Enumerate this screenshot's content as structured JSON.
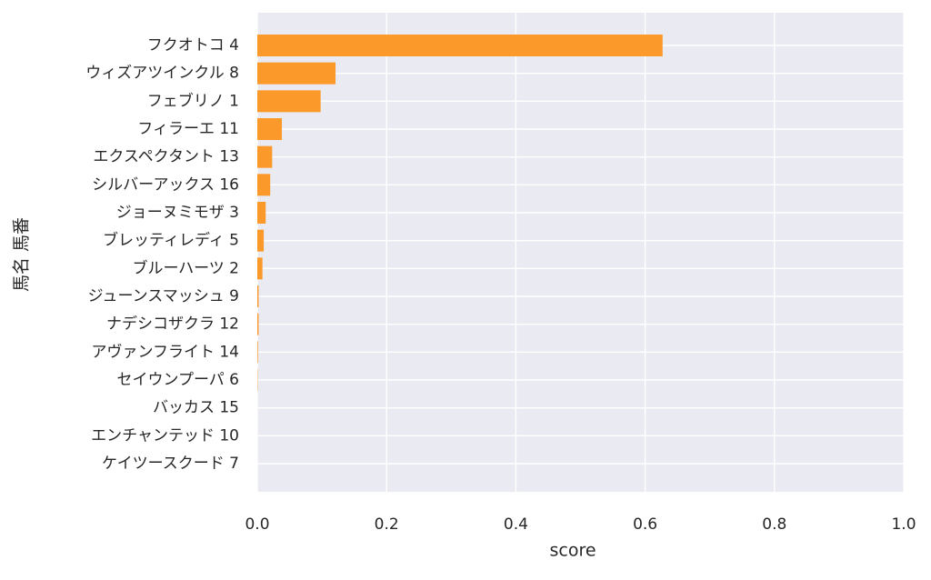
{
  "chart_data": {
    "type": "barh",
    "xlabel": "score",
    "ylabel": "馬名 馬番",
    "categories": [
      "フクオトコ 4",
      "ウィズアツインクル 8",
      "フェブリノ 1",
      "フィラーエ 11",
      "エクスペクタント 13",
      "シルバーアックス 16",
      "ジョーヌミモザ 3",
      "ブレッティレディ 5",
      "ブルーハーツ 2",
      "ジューンスマッシュ 9",
      "ナデシコザクラ 12",
      "アヴァンフライト 14",
      "セイウンプーパ 6",
      "バッカス 15",
      "エンチャンテッド 10",
      "ケイツースクード 7"
    ],
    "values": [
      0.627,
      0.121,
      0.098,
      0.038,
      0.023,
      0.02,
      0.013,
      0.01,
      0.008,
      0.002,
      0.002,
      0.001,
      0.0005,
      0,
      0,
      0
    ],
    "color": "#fb9a2b",
    "xlim": [
      0,
      1
    ],
    "xticks": [
      {
        "value": 0,
        "label": "0.0"
      },
      0.2,
      0.4,
      0.6,
      0.8,
      {
        "value": 1,
        "label": "1.0"
      }
    ],
    "grid": true
  }
}
